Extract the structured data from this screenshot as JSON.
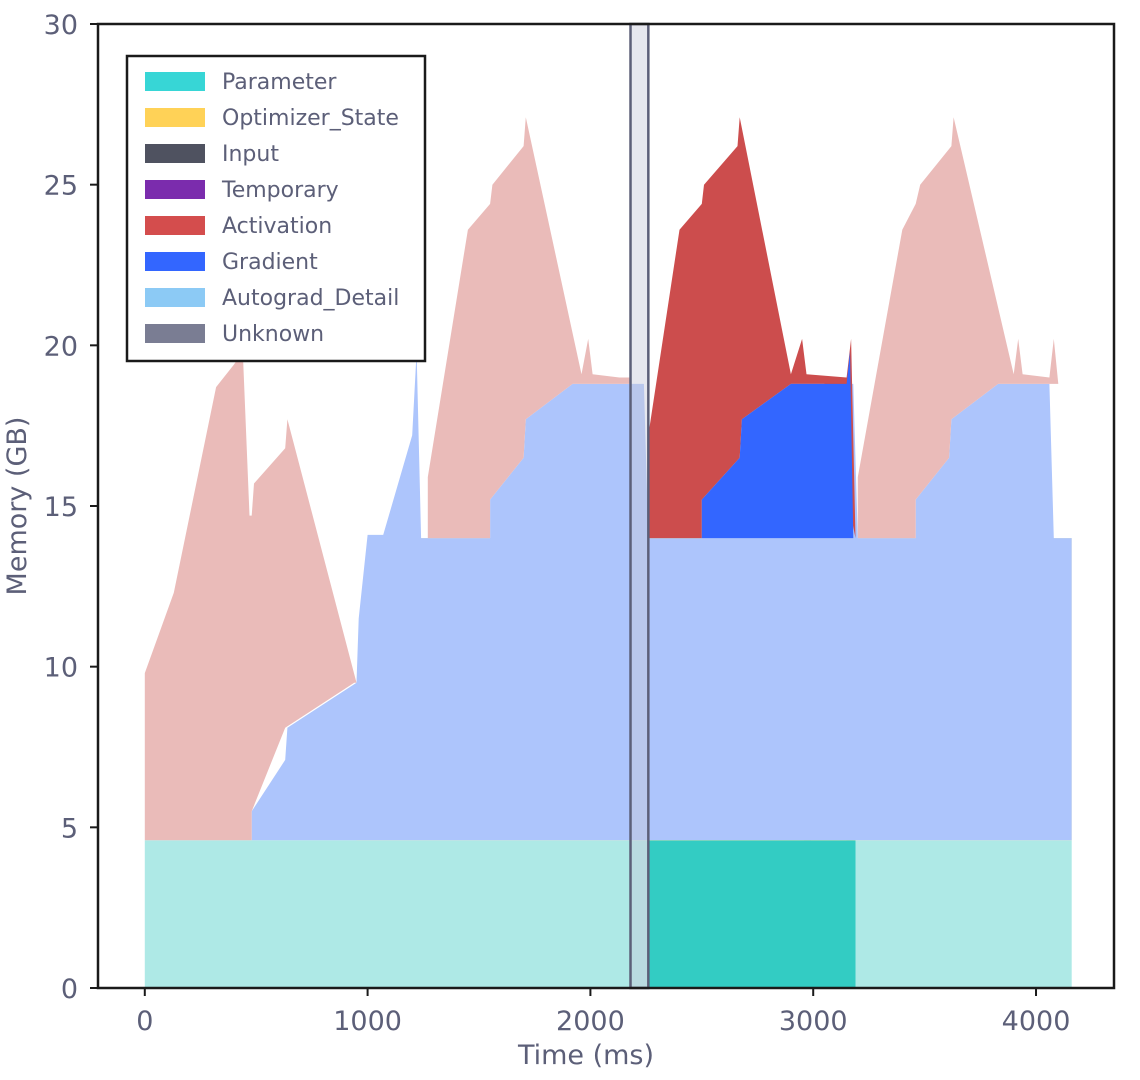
{
  "chart_data": {
    "type": "area",
    "title": "",
    "xlabel": "Time (ms)",
    "ylabel": "Memory (GB)",
    "xlim": [
      -210,
      4350
    ],
    "ylim": [
      0,
      30
    ],
    "x_ticks": [
      0,
      1000,
      2000,
      3000,
      4000
    ],
    "y_ticks": [
      0,
      5,
      10,
      15,
      20,
      25,
      30
    ],
    "x_tick_labels": [
      "0",
      "1000",
      "2000",
      "3000",
      "4000"
    ],
    "y_tick_labels": [
      "0",
      "5",
      "10",
      "15",
      "20",
      "25",
      "30"
    ],
    "highlight_range": [
      2180,
      2260
    ],
    "legend_position": "top-left",
    "categories": [
      "Parameter",
      "Optimizer_State",
      "Input",
      "Temporary",
      "Activation",
      "Gradient",
      "Autograd_Detail",
      "Unknown"
    ],
    "category_colors": [
      "#37d6d6",
      "#ffd257",
      "#4f5260",
      "#7b2cad",
      "#d44d4d",
      "#3366ff",
      "#8ccaf5",
      "#7a7d93"
    ],
    "series": [
      {
        "name": "Parameter (light)",
        "color": "#aee9e6",
        "points": [
          [
            0,
            0
          ],
          [
            0,
            4.6
          ],
          [
            4160,
            4.6
          ],
          [
            4160,
            0
          ]
        ]
      },
      {
        "name": "Parameter (step)",
        "color": "#33ccc3",
        "points": [
          [
            2260,
            0
          ],
          [
            2260,
            4.6
          ],
          [
            2960,
            4.6
          ],
          [
            2975,
            5.6
          ],
          [
            2990,
            4.6
          ],
          [
            3150,
            4.6
          ],
          [
            3165,
            5.6
          ],
          [
            3180,
            4.6
          ],
          [
            3190,
            4.6
          ],
          [
            3190,
            0
          ]
        ]
      },
      {
        "name": "Optimizer_State (light)",
        "color": "#fef4ac",
        "points": [
          [
            950,
            4.6
          ],
          [
            950,
            6.5
          ],
          [
            990,
            7.0
          ],
          [
            1220,
            14.8
          ],
          [
            1225,
            14.0
          ],
          [
            4160,
            14.0
          ],
          [
            4160,
            4.6
          ]
        ]
      },
      {
        "name": "Optimizer_State (step)",
        "color": "#fee532",
        "points": [
          [
            2260,
            4.6
          ],
          [
            2260,
            14.0
          ],
          [
            3190,
            14.0
          ],
          [
            3190,
            4.6
          ]
        ]
      },
      {
        "name": "Autograd_Detail",
        "color": "#adc5fc",
        "points": [
          [
            480,
            4.6
          ],
          [
            480,
            5.5
          ],
          [
            630,
            7.1
          ],
          [
            640,
            8.1
          ],
          [
            950,
            9.5
          ],
          [
            960,
            11.5
          ],
          [
            1000,
            14.1
          ],
          [
            1070,
            14.1
          ],
          [
            1200,
            17.2
          ],
          [
            1220,
            19.8
          ],
          [
            1240,
            14.0
          ],
          [
            1270,
            14.0
          ],
          [
            1270,
            14.0
          ],
          [
            1550,
            14.0
          ],
          [
            1550,
            15.2
          ],
          [
            1700,
            16.5
          ],
          [
            1710,
            17.7
          ],
          [
            1920,
            18.8
          ],
          [
            2050,
            18.8
          ],
          [
            2130,
            18.8
          ],
          [
            2240,
            18.8
          ],
          [
            2260,
            14.0
          ],
          [
            2500,
            14.0
          ],
          [
            2500,
            15.2
          ],
          [
            2670,
            16.5
          ],
          [
            2680,
            17.7
          ],
          [
            2900,
            18.8
          ],
          [
            3050,
            18.8
          ],
          [
            3180,
            18.8
          ],
          [
            3200,
            14.0
          ],
          [
            3460,
            14.0
          ],
          [
            3460,
            15.2
          ],
          [
            3610,
            16.5
          ],
          [
            3620,
            17.7
          ],
          [
            3830,
            18.8
          ],
          [
            3950,
            18.8
          ],
          [
            4060,
            18.8
          ],
          [
            4080,
            14.0
          ],
          [
            4160,
            14.0
          ],
          [
            4160,
            4.6
          ],
          [
            480,
            4.6
          ]
        ]
      },
      {
        "name": "Activation (light)",
        "color": "#eabbb9",
        "points": [
          [
            0,
            4.6
          ],
          [
            0,
            9.8
          ],
          [
            130,
            12.3
          ],
          [
            320,
            18.7
          ],
          [
            400,
            19.4
          ],
          [
            440,
            19.8
          ],
          [
            470,
            14.7
          ],
          [
            480,
            14.7
          ],
          [
            490,
            15.7
          ],
          [
            630,
            16.8
          ],
          [
            640,
            17.7
          ],
          [
            950,
            9.5
          ],
          [
            940,
            9.5
          ],
          [
            630,
            8.1
          ],
          [
            480,
            5.5
          ],
          [
            480,
            4.6
          ]
        ]
      },
      {
        "name": "Activation (light, pass 2)",
        "color": "#eabbb9",
        "points": [
          [
            1270,
            14.0
          ],
          [
            1270,
            15.9
          ],
          [
            1450,
            23.6
          ],
          [
            1550,
            24.4
          ],
          [
            1560,
            25.0
          ],
          [
            1700,
            26.2
          ],
          [
            1710,
            27.1
          ],
          [
            1960,
            19.1
          ],
          [
            1990,
            20.2
          ],
          [
            2010,
            19.1
          ],
          [
            2130,
            19.0
          ],
          [
            2180,
            19.0
          ],
          [
            2180,
            18.8
          ],
          [
            1920,
            18.8
          ],
          [
            1710,
            17.7
          ],
          [
            1700,
            16.5
          ],
          [
            1550,
            15.2
          ],
          [
            1550,
            14.0
          ]
        ]
      },
      {
        "name": "Activation (step)",
        "color": "#cc4d4d",
        "points": [
          [
            2260,
            14.0
          ],
          [
            2260,
            17.2
          ],
          [
            2400,
            23.6
          ],
          [
            2500,
            24.4
          ],
          [
            2510,
            25.0
          ],
          [
            2660,
            26.2
          ],
          [
            2670,
            27.1
          ],
          [
            2900,
            19.1
          ],
          [
            2950,
            20.2
          ],
          [
            2970,
            19.1
          ],
          [
            3150,
            19.0
          ],
          [
            3170,
            20.2
          ],
          [
            3190,
            14.0
          ],
          [
            3050,
            18.8
          ],
          [
            2900,
            18.8
          ],
          [
            2680,
            17.7
          ],
          [
            2670,
            16.5
          ],
          [
            2500,
            15.2
          ],
          [
            2500,
            14.0
          ]
        ]
      },
      {
        "name": "Gradient (step)",
        "color": "#3366ff",
        "points": [
          [
            2500,
            14.0
          ],
          [
            2500,
            15.2
          ],
          [
            2670,
            16.5
          ],
          [
            2680,
            17.7
          ],
          [
            2900,
            18.8
          ],
          [
            3150,
            18.8
          ],
          [
            3165,
            19.8
          ],
          [
            3180,
            14.0
          ],
          [
            3190,
            14.0
          ]
        ]
      },
      {
        "name": "Activation (light, pass 3)",
        "color": "#eabbb9",
        "points": [
          [
            3200,
            14.0
          ],
          [
            3200,
            15.9
          ],
          [
            3400,
            23.6
          ],
          [
            3460,
            24.4
          ],
          [
            3480,
            25.0
          ],
          [
            3620,
            26.2
          ],
          [
            3630,
            27.1
          ],
          [
            3900,
            19.1
          ],
          [
            3920,
            20.2
          ],
          [
            3940,
            19.1
          ],
          [
            4060,
            19.0
          ],
          [
            4080,
            20.2
          ],
          [
            4100,
            18.8
          ],
          [
            3830,
            18.8
          ],
          [
            3620,
            17.7
          ],
          [
            3610,
            16.5
          ],
          [
            3460,
            15.2
          ],
          [
            3460,
            14.0
          ]
        ]
      }
    ]
  }
}
